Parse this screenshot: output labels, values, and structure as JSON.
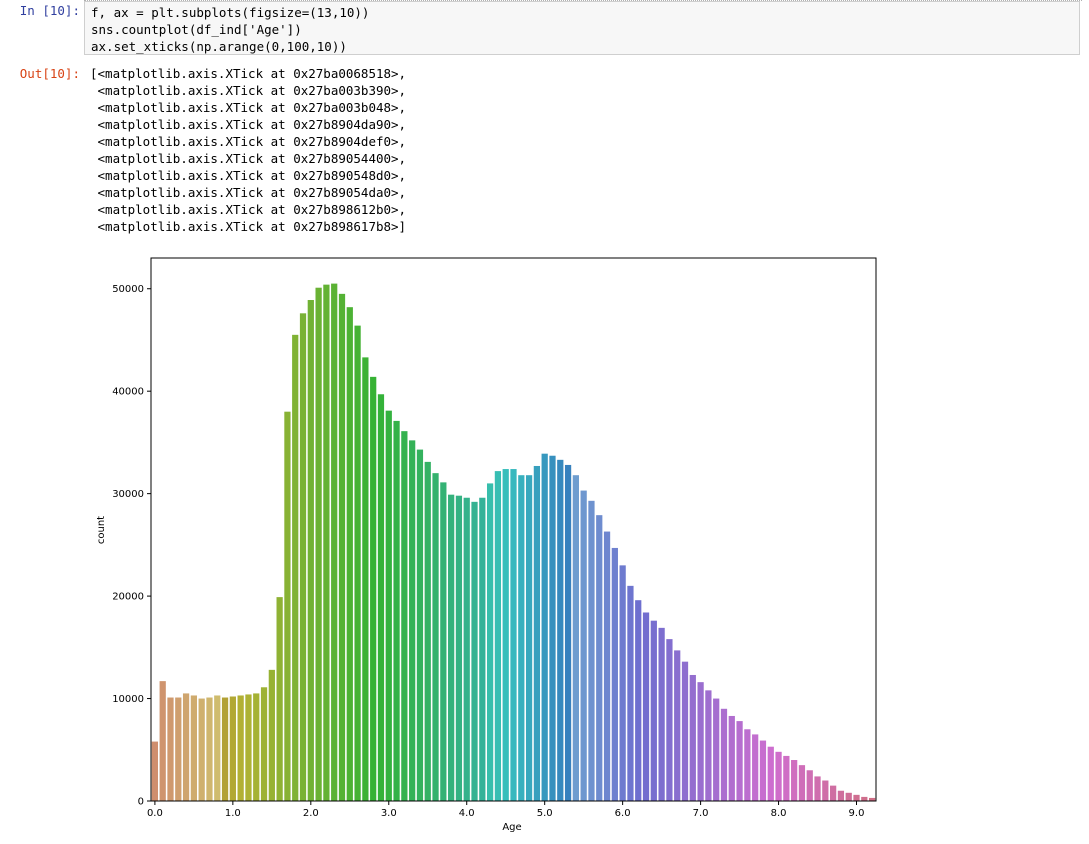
{
  "cell": {
    "in_prompt": "In [10]:",
    "out_prompt": "Out[10]:",
    "code_lines": [
      "f, ax = plt.subplots(figsize=(13,10))",
      "sns.countplot(df_ind['Age'])",
      "ax.set_xticks(np.arange(0,100,10))"
    ],
    "output_lines": [
      "[<matplotlib.axis.XTick at 0x27ba0068518>,",
      " <matplotlib.axis.XTick at 0x27ba003b390>,",
      " <matplotlib.axis.XTick at 0x27ba003b048>,",
      " <matplotlib.axis.XTick at 0x27b8904da90>,",
      " <matplotlib.axis.XTick at 0x27b8904def0>,",
      " <matplotlib.axis.XTick at 0x27b89054400>,",
      " <matplotlib.axis.XTick at 0x27b890548d0>,",
      " <matplotlib.axis.XTick at 0x27b89054da0>,",
      " <matplotlib.axis.XTick at 0x27b898612b0>,",
      " <matplotlib.axis.XTick at 0x27b898617b8>]"
    ]
  },
  "chart_data": {
    "type": "bar",
    "xlabel": "Age",
    "ylabel": "count",
    "ylim": [
      0,
      53000
    ],
    "yticks": [
      0,
      10000,
      20000,
      30000,
      40000,
      50000
    ],
    "xtick_labels": [
      "0.0",
      "1.0",
      "2.0",
      "3.0",
      "4.0",
      "5.0",
      "6.0",
      "7.0",
      "8.0",
      "9.0"
    ],
    "xtick_positions": [
      0,
      10,
      20,
      30,
      40,
      50,
      60,
      70,
      80,
      90
    ],
    "grid": false,
    "palette": "seaborn-husl",
    "values": [
      5800,
      11700,
      10100,
      10100,
      10500,
      10300,
      10000,
      10100,
      10300,
      10100,
      10200,
      10300,
      10400,
      10500,
      11100,
      12800,
      19900,
      38000,
      45500,
      47600,
      48900,
      50100,
      50400,
      50500,
      49500,
      48200,
      46400,
      43300,
      41400,
      39700,
      38100,
      37100,
      36100,
      35200,
      34300,
      33100,
      32000,
      31100,
      29900,
      29800,
      29600,
      29200,
      29600,
      31000,
      32200,
      32400,
      32400,
      31800,
      31800,
      32700,
      33900,
      33700,
      33300,
      32800,
      31800,
      30300,
      29300,
      27900,
      26300,
      24700,
      23000,
      21000,
      19600,
      18400,
      17600,
      16900,
      15800,
      14700,
      13600,
      12300,
      11600,
      10800,
      10000,
      9000,
      8300,
      7800,
      7000,
      6500,
      5900,
      5300,
      4800,
      4400,
      4000,
      3500,
      3000,
      2400,
      2000,
      1500,
      1000,
      800,
      600,
      400,
      300
    ]
  }
}
